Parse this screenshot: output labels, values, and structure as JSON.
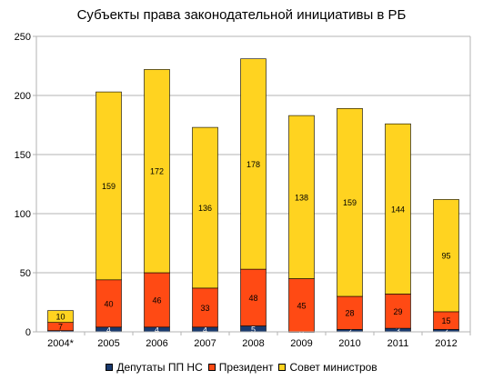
{
  "chart_data": {
    "type": "bar",
    "stacked": true,
    "title": "Субъекты права законодательной инициативы в РБ",
    "categories": [
      "2004*",
      "2005",
      "2006",
      "2007",
      "2008",
      "2009",
      "2010",
      "2011",
      "2012"
    ],
    "series": [
      {
        "name": "Депутаты ПП НС",
        "color": "#1a3a6e",
        "values": [
          1,
          4,
          4,
          4,
          5,
          0,
          2,
          3,
          2
        ]
      },
      {
        "name": "Президент",
        "color": "#ff4a14",
        "values": [
          7,
          40,
          46,
          33,
          48,
          45,
          28,
          29,
          15
        ]
      },
      {
        "name": "Совет министров",
        "color": "#ffd320",
        "values": [
          10,
          159,
          172,
          136,
          178,
          138,
          159,
          144,
          95
        ]
      }
    ],
    "ylim": [
      0,
      250
    ],
    "yticks": [
      0,
      50,
      100,
      150,
      200,
      250
    ],
    "grid": "horizontal",
    "legend_position": "bottom"
  }
}
